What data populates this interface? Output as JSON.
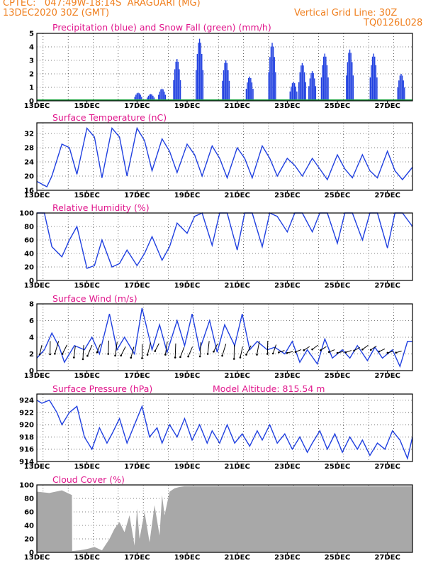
{
  "header": {
    "line1": "CPTEC:   047:49W-18:14S  ARAGUARI (MG)",
    "line2": "13DEC2020 30Z (GMT)",
    "grid_note": "Vertical Grid Line: 30Z",
    "code": "TQ0126L028"
  },
  "colors": {
    "line": "#2040e0",
    "snow": "#20a040",
    "cloud": "#a8a8a8",
    "title": "#e0168c",
    "header": "#f08020"
  },
  "chart_data": [
    {
      "type": "bar",
      "title": "Precipitation (blue) and Snow Fall (green) (mm/h)",
      "x_tick_labels": [
        "13DEC",
        "15DEC",
        "17DEC",
        "19DEC",
        "21DEC",
        "23DEC",
        "25DEC",
        "27DEC"
      ],
      "yticks": [
        "0",
        "1",
        "2",
        "3",
        "4",
        "5"
      ],
      "ylim": [
        0,
        5
      ],
      "events": [
        {
          "day": 17.05,
          "peak": 0.6
        },
        {
          "day": 17.55,
          "peak": 0.5
        },
        {
          "day": 18.0,
          "peak": 0.9
        },
        {
          "day": 18.6,
          "peak": 3.1
        },
        {
          "day": 19.5,
          "peak": 4.6
        },
        {
          "day": 20.55,
          "peak": 3.0
        },
        {
          "day": 21.5,
          "peak": 1.8
        },
        {
          "day": 22.4,
          "peak": 4.3
        },
        {
          "day": 23.25,
          "peak": 1.4
        },
        {
          "day": 23.6,
          "peak": 2.8
        },
        {
          "day": 24.0,
          "peak": 2.2
        },
        {
          "day": 24.5,
          "peak": 3.5
        },
        {
          "day": 25.5,
          "peak": 3.8
        },
        {
          "day": 26.45,
          "peak": 3.5
        },
        {
          "day": 27.55,
          "peak": 2.0
        }
      ],
      "snow_values": 0
    },
    {
      "type": "line",
      "title": "Surface Temperature (nC)",
      "x_tick_labels": [
        "13DEC",
        "15DEC",
        "17DEC",
        "19DEC",
        "21DEC",
        "23DEC",
        "25DEC",
        "27DEC"
      ],
      "yticks": [
        "16",
        "20",
        "24",
        "28",
        "32"
      ],
      "ylim": [
        16,
        35
      ],
      "x": [
        13.0,
        13.4,
        13.6,
        14.0,
        14.3,
        14.6,
        15.0,
        15.3,
        15.6,
        16.0,
        16.3,
        16.6,
        17.0,
        17.3,
        17.6,
        18.0,
        18.3,
        18.6,
        19.0,
        19.3,
        19.6,
        20.0,
        20.3,
        20.6,
        21.0,
        21.3,
        21.6,
        22.0,
        22.3,
        22.6,
        23.0,
        23.3,
        23.6,
        24.0,
        24.3,
        24.6,
        25.0,
        25.3,
        25.6,
        26.0,
        26.3,
        26.6,
        27.0,
        27.3,
        27.6,
        28.0
      ],
      "y": [
        18.5,
        17,
        20,
        29,
        28,
        20.5,
        33.5,
        31,
        19.5,
        33.5,
        31,
        20,
        33.5,
        30,
        21.5,
        30.5,
        27,
        21,
        29,
        26,
        20,
        28.5,
        25,
        19.5,
        28,
        25,
        19.5,
        28.5,
        25,
        20,
        25,
        23,
        20,
        25,
        22,
        19,
        26,
        22,
        19.5,
        26,
        21.5,
        19.5,
        27,
        21.5,
        19,
        22.5
      ]
    },
    {
      "type": "line",
      "title": "Relative Humidity (%)",
      "x_tick_labels": [
        "13DEC",
        "15DEC",
        "17DEC",
        "19DEC",
        "21DEC",
        "23DEC",
        "25DEC",
        "27DEC"
      ],
      "yticks": [
        "0",
        "20",
        "40",
        "60",
        "80",
        "100"
      ],
      "ylim": [
        0,
        100
      ],
      "x": [
        13.0,
        13.3,
        13.6,
        14.0,
        14.3,
        14.6,
        15.0,
        15.3,
        15.6,
        16.0,
        16.3,
        16.6,
        17.0,
        17.3,
        17.6,
        18.0,
        18.3,
        18.6,
        19.0,
        19.3,
        19.6,
        20.0,
        20.3,
        20.6,
        21.0,
        21.3,
        21.6,
        22.0,
        22.3,
        22.6,
        23.0,
        23.3,
        23.6,
        24.0,
        24.3,
        24.6,
        25.0,
        25.3,
        25.6,
        26.0,
        26.3,
        26.6,
        27.0,
        27.3,
        27.6,
        28.0
      ],
      "y": [
        100,
        100,
        50,
        35,
        60,
        80,
        18,
        22,
        60,
        20,
        25,
        45,
        22,
        40,
        65,
        30,
        50,
        85,
        70,
        95,
        100,
        52,
        100,
        100,
        45,
        100,
        100,
        50,
        100,
        95,
        72,
        100,
        100,
        72,
        100,
        100,
        55,
        100,
        100,
        60,
        100,
        100,
        48,
        100,
        100,
        80
      ]
    },
    {
      "type": "line",
      "title": "Surface Wind (m/s)",
      "x_tick_labels": [
        "13DEC",
        "15DEC",
        "17DEC",
        "19DEC",
        "21DEC",
        "23DEC",
        "25DEC",
        "27DEC"
      ],
      "yticks": [
        "0",
        "2",
        "4",
        "6",
        "8"
      ],
      "ylim": [
        0,
        8
      ],
      "x": [
        13.0,
        13.3,
        13.6,
        13.9,
        14.1,
        14.5,
        14.9,
        15.2,
        15.5,
        15.9,
        16.2,
        16.5,
        16.9,
        17.2,
        17.6,
        17.9,
        18.2,
        18.6,
        18.9,
        19.2,
        19.5,
        19.9,
        20.2,
        20.5,
        20.9,
        21.2,
        21.5,
        21.8,
        22.2,
        22.5,
        22.9,
        23.2,
        23.5,
        23.8,
        24.2,
        24.5,
        24.8,
        25.2,
        25.5,
        25.8,
        26.2,
        26.5,
        26.8,
        27.2,
        27.5,
        27.8,
        28.0
      ],
      "y": [
        1.5,
        2.5,
        4.5,
        2.8,
        1.0,
        3.0,
        2.5,
        4.0,
        2.0,
        6.8,
        2.5,
        4.0,
        2.0,
        7.5,
        2.5,
        5.5,
        2.2,
        6.0,
        3.0,
        6.8,
        2.5,
        6.0,
        2.2,
        5.5,
        3.0,
        6.8,
        2.5,
        3.5,
        2.5,
        2.8,
        2.0,
        3.5,
        1.0,
        2.5,
        0.8,
        3.8,
        1.5,
        2.5,
        1.5,
        3.0,
        1.2,
        2.8,
        1.5,
        2.5,
        0.5,
        3.5,
        3.5
      ],
      "vector_count": 44
    },
    {
      "type": "line",
      "title": "Surface Pressure (hPa)",
      "annotation": "Model Altitude: 815.54  m",
      "x_tick_labels": [
        "13DEC",
        "15DEC",
        "17DEC",
        "19DEC",
        "21DEC",
        "23DEC",
        "25DEC",
        "27DEC"
      ],
      "yticks": [
        "914",
        "916",
        "918",
        "920",
        "922",
        "924"
      ],
      "ylim": [
        914,
        925
      ],
      "x": [
        13.0,
        13.2,
        13.5,
        13.8,
        14.0,
        14.3,
        14.6,
        14.9,
        15.2,
        15.5,
        15.8,
        16.0,
        16.3,
        16.6,
        16.9,
        17.2,
        17.5,
        17.8,
        18.0,
        18.3,
        18.6,
        18.9,
        19.2,
        19.5,
        19.8,
        20.0,
        20.3,
        20.6,
        20.9,
        21.2,
        21.5,
        21.8,
        22.0,
        22.3,
        22.6,
        22.9,
        23.2,
        23.5,
        23.8,
        24.0,
        24.3,
        24.6,
        24.9,
        25.2,
        25.5,
        25.8,
        26.0,
        26.3,
        26.6,
        26.9,
        27.2,
        27.5,
        27.8,
        28.0
      ],
      "y": [
        924,
        923.5,
        924,
        922,
        920,
        922,
        923,
        918,
        916,
        919.5,
        917,
        918.5,
        921,
        917,
        920,
        923,
        918,
        919.5,
        917,
        920,
        918,
        921,
        917.5,
        920,
        917,
        919,
        917,
        920,
        917,
        918.5,
        916.5,
        919,
        917.5,
        920,
        917,
        918.5,
        916,
        918,
        915.5,
        917,
        919,
        916,
        918.5,
        915.5,
        918,
        916,
        917.5,
        915,
        917,
        916,
        919,
        917.5,
        914.5,
        918
      ]
    },
    {
      "type": "area",
      "title": "Cloud Cover (%)",
      "x_tick_labels": [
        "13DEC",
        "15DEC",
        "17DEC",
        "19DEC",
        "21DEC",
        "23DEC",
        "25DEC",
        "27DEC"
      ],
      "yticks": [
        "0",
        "20",
        "40",
        "60",
        "80",
        "100"
      ],
      "ylim": [
        0,
        100
      ],
      "x": [
        13.0,
        13.5,
        14.0,
        14.4,
        14.41,
        14.7,
        15.0,
        15.3,
        15.6,
        15.9,
        16.1,
        16.3,
        16.5,
        16.7,
        16.9,
        17.0,
        17.1,
        17.3,
        17.5,
        17.7,
        17.9,
        18.0,
        18.1,
        18.3,
        18.5,
        18.7,
        18.9,
        19.0,
        28.0
      ],
      "y": [
        90,
        88,
        92,
        85,
        2,
        3,
        5,
        8,
        3,
        20,
        35,
        45,
        30,
        55,
        10,
        65,
        20,
        60,
        15,
        70,
        25,
        85,
        55,
        90,
        95,
        97,
        98,
        98,
        98
      ]
    }
  ]
}
